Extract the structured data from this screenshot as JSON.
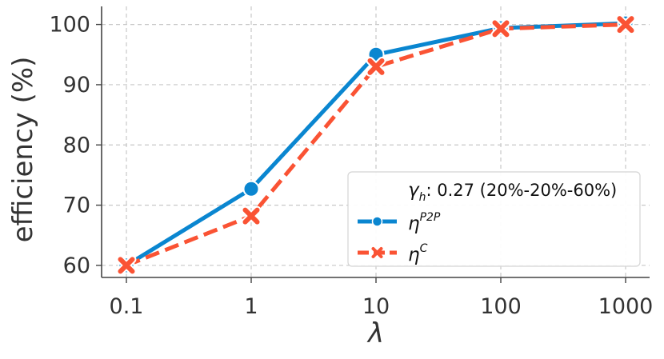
{
  "chart_data": {
    "type": "line",
    "x_scale": "log",
    "categories": [
      "0.1",
      "1",
      "10",
      "100",
      "1000"
    ],
    "x": [
      0.1,
      1,
      10,
      100,
      1000
    ],
    "series": [
      {
        "name": "η^P2P",
        "symbol": "η",
        "superscript": "P2P",
        "values": [
          60.0,
          72.7,
          95.0,
          99.4,
          100.2
        ],
        "color": "#0a86d0",
        "linestyle": "solid",
        "marker": "circle"
      },
      {
        "name": "η^C",
        "symbol": "η",
        "superscript": "C",
        "values": [
          60.0,
          68.2,
          93.0,
          99.3,
          100.0
        ],
        "color": "#fa5334",
        "linestyle": "dashed",
        "marker": "x"
      }
    ],
    "xlabel": "λ",
    "ylabel": "efficiency (%)",
    "ylim": [
      58,
      103
    ],
    "yticks": [
      60,
      70,
      80,
      90,
      100
    ],
    "grid": true,
    "legend": {
      "position": "bottom-right",
      "title_symbol": "γ",
      "title_subscript": "h",
      "title_rest": ": 0.27 (20%-20%-60%)"
    }
  }
}
